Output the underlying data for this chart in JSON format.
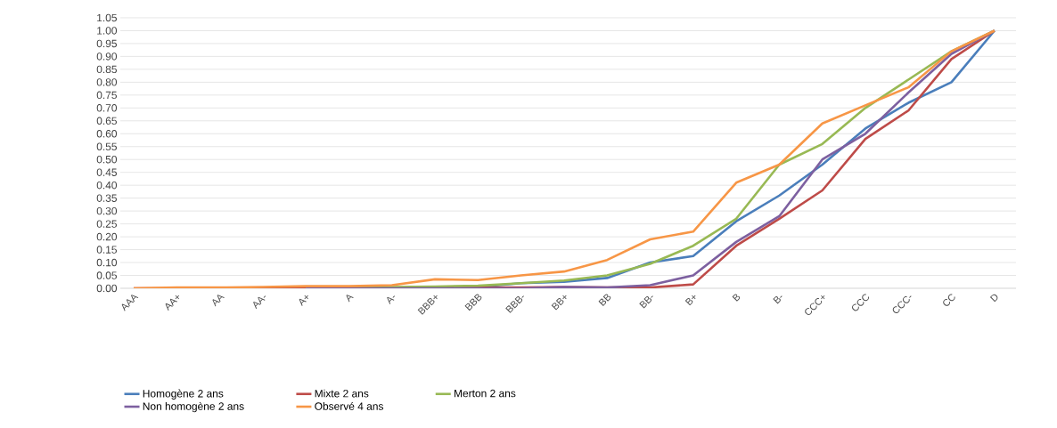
{
  "chart_data": {
    "type": "line",
    "categories": [
      "AAA",
      "AA+",
      "AA",
      "AA-",
      "A+",
      "A",
      "A-",
      "BBB+",
      "BBB",
      "BBB-",
      "BB+",
      "BB",
      "BB-",
      "B+",
      "B",
      "B-",
      "CCC+",
      "CCC",
      "CCC-",
      "CC",
      "D"
    ],
    "series": [
      {
        "name": "Homogène 2 ans",
        "color": "#4a7ebb",
        "values": [
          null,
          null,
          null,
          null,
          null,
          null,
          null,
          null,
          0.005,
          0.02,
          0.025,
          0.04,
          0.1,
          0.125,
          0.26,
          0.36,
          0.48,
          0.62,
          0.72,
          0.8,
          1.0
        ]
      },
      {
        "name": "Mixte 2 ans",
        "color": "#be4b48",
        "values": [
          0,
          0,
          0,
          0,
          0,
          0,
          0,
          0.003,
          0.003,
          0.003,
          0.005,
          0.003,
          0.003,
          0.015,
          0.165,
          0.27,
          0.38,
          0.58,
          0.69,
          0.89,
          1.0
        ]
      },
      {
        "name": "Merton 2 ans",
        "color": "#98b954",
        "values": [
          null,
          null,
          null,
          null,
          0.002,
          0.003,
          0.005,
          0.007,
          0.01,
          0.02,
          0.03,
          0.05,
          0.095,
          0.165,
          0.27,
          0.48,
          0.56,
          0.7,
          0.81,
          0.92,
          1.0
        ]
      },
      {
        "name": "Non homogène 2 ans",
        "color": "#7d60a0",
        "values": [
          null,
          null,
          null,
          null,
          0,
          0,
          0,
          0,
          0,
          0,
          0.005,
          0.003,
          0.012,
          0.05,
          0.18,
          0.28,
          0.5,
          0.6,
          0.76,
          0.91,
          1.0
        ]
      },
      {
        "name": "Observé 4 ans",
        "color": "#f79646",
        "values": [
          0,
          0.003,
          0.003,
          0.005,
          0.008,
          0.008,
          0.012,
          0.035,
          0.032,
          0.05,
          0.065,
          0.11,
          0.19,
          0.22,
          0.41,
          0.48,
          0.64,
          0.71,
          0.78,
          0.92,
          1.0
        ]
      }
    ],
    "ylim": [
      0,
      1.05
    ],
    "yticks": [
      {
        "value": 0,
        "label": "0.00"
      },
      {
        "value": 0.05,
        "label": "0.05"
      },
      {
        "value": 0.1,
        "label": "0.10"
      },
      {
        "value": 0.15,
        "label": "0.15"
      },
      {
        "value": 0.2,
        "label": "0.20"
      },
      {
        "value": 0.25,
        "label": "0.25"
      },
      {
        "value": 0.3,
        "label": "0.30"
      },
      {
        "value": 0.35,
        "label": "0.35"
      },
      {
        "value": 0.4,
        "label": "0.40"
      },
      {
        "value": 0.45,
        "label": "0.45"
      },
      {
        "value": 0.5,
        "label": "0.50"
      },
      {
        "value": 0.55,
        "label": "0.55"
      },
      {
        "value": 0.6,
        "label": "0.60"
      },
      {
        "value": 0.65,
        "label": "0.65"
      },
      {
        "value": 0.7,
        "label": "0.70"
      },
      {
        "value": 0.75,
        "label": "0.75"
      },
      {
        "value": 0.8,
        "label": "0.80"
      },
      {
        "value": 0.85,
        "label": "0.85"
      },
      {
        "value": 0.9,
        "label": "0.90"
      },
      {
        "value": 0.95,
        "label": "0.95"
      },
      {
        "value": 1.0,
        "label": "1.00"
      },
      {
        "value": 1.05,
        "label": "1.05"
      }
    ],
    "grid": "y",
    "legend": "bottom"
  }
}
